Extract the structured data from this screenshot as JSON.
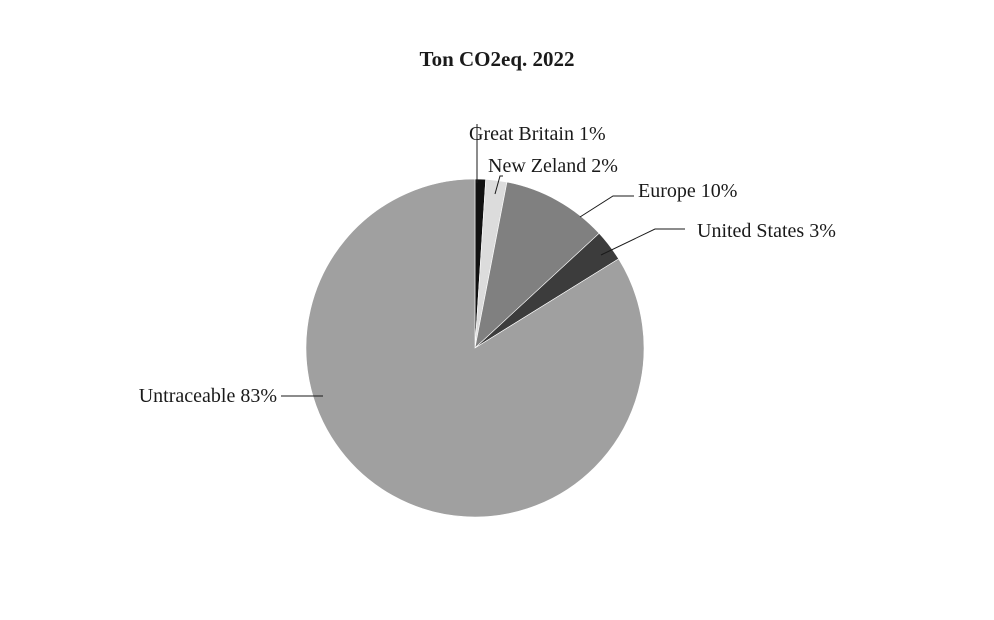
{
  "chart_data": {
    "type": "pie",
    "title": "Ton CO2eq. 2022",
    "slices": [
      {
        "label": "Great Britain",
        "value": 1,
        "value_label": "1%",
        "color": "#111111"
      },
      {
        "label": "New Zeland",
        "value": 2,
        "value_label": "2%",
        "color": "#dcdcdc"
      },
      {
        "label": "Europe",
        "value": 10,
        "value_label": "10%",
        "color": "#808080"
      },
      {
        "label": "United States",
        "value": 3,
        "value_label": "3%",
        "color": "#3c3c3c"
      },
      {
        "label": "Untraceable",
        "value": 83,
        "value_label": "83%",
        "color": "#a0a0a0"
      }
    ],
    "start_angle": "12 o'clock",
    "direction": "clockwise",
    "legend": "none"
  }
}
